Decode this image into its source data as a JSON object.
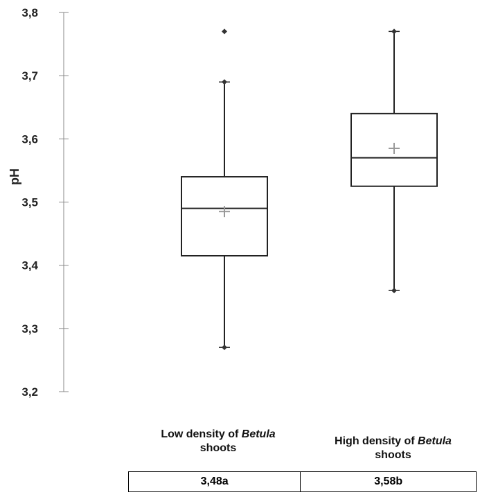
{
  "chart_data": {
    "type": "box",
    "ylabel": "pH",
    "ylim": [
      3.2,
      3.8
    ],
    "yticks": [
      "3,2",
      "3,3",
      "3,4",
      "3,5",
      "3,6",
      "3,7",
      "3,8"
    ],
    "ytick_values": [
      3.2,
      3.3,
      3.4,
      3.5,
      3.6,
      3.7,
      3.8
    ],
    "grid": false,
    "categories": [
      {
        "pre": "Low density of ",
        "italic": "Betula",
        "post": " shoots"
      },
      {
        "pre": "High density of ",
        "italic": "Betula",
        "post": " shoots"
      }
    ],
    "boxes": [
      {
        "whisker_low": 3.27,
        "q1": 3.415,
        "median": 3.49,
        "q3": 3.54,
        "whisker_high": 3.69,
        "mean": 3.485,
        "outliers": [
          3.77
        ]
      },
      {
        "whisker_low": 3.36,
        "q1": 3.525,
        "median": 3.57,
        "q3": 3.64,
        "whisker_high": 3.77,
        "mean": 3.585,
        "outliers": []
      }
    ],
    "table": [
      "3,48a",
      "3,58b"
    ]
  }
}
